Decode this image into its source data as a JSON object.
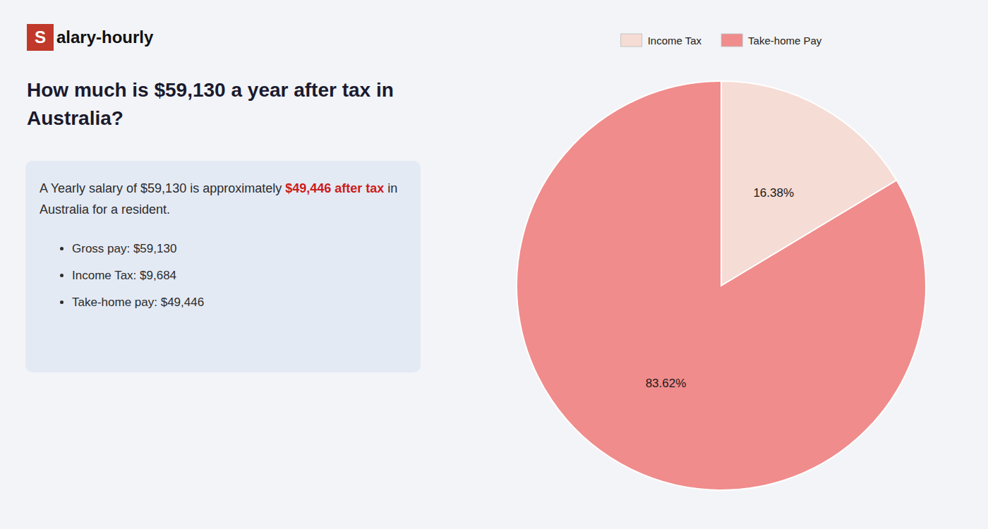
{
  "chart_data": {
    "type": "pie",
    "title": "How much is $59,130 a year after tax in Australia?",
    "annotations": [
      "S",
      "alary-hourly",
      "A Yearly salary of $59,130 is approximately ",
      "$49,446 after tax",
      " in",
      "Australia for a resident.",
      "Gross pay: $59,130",
      "Income Tax: $9,684",
      "Take-home pay: $49,446"
    ],
    "categories": [
      "Income Tax",
      "Take-home Pay"
    ],
    "values": [
      16.38,
      83.62
    ],
    "value_labels": [
      "16.38%",
      "83.62%"
    ],
    "colors": [
      "#f5dcd5",
      "#f08c8c"
    ],
    "data_labels": true,
    "legend": "top"
  }
}
